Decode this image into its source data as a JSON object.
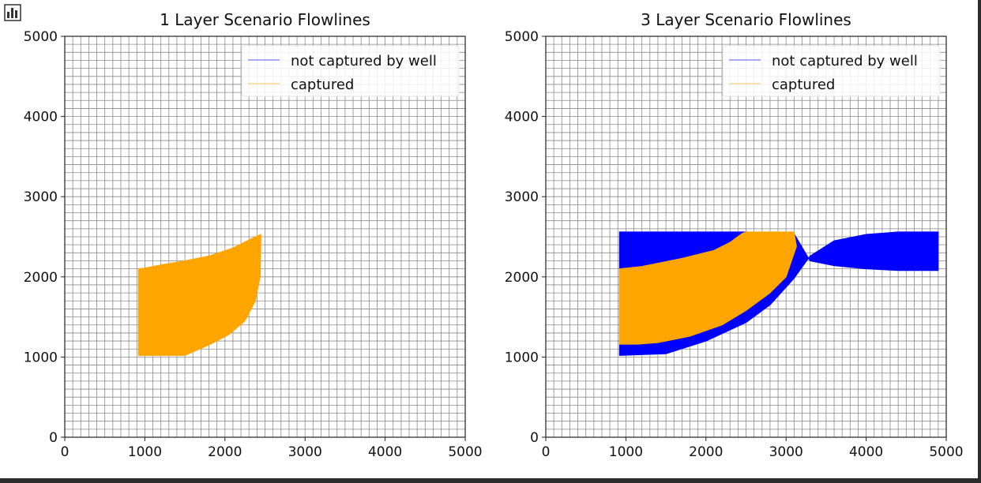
{
  "toolbar": {
    "icon": "bar-chart-icon"
  },
  "chart_data": [
    {
      "type": "line",
      "title": "1 Layer Scenario Flowlines",
      "xlabel": "",
      "ylabel": "",
      "xlim": [
        0,
        5000
      ],
      "ylim": [
        0,
        5000
      ],
      "xticks": [
        "0",
        "1000",
        "2000",
        "3000",
        "4000",
        "5000"
      ],
      "yticks": [
        "0",
        "1000",
        "2000",
        "3000",
        "4000",
        "5000"
      ],
      "grid": true,
      "grid_spacing": 100,
      "legend_position": "top-right",
      "series": [
        {
          "name": "not captured by well",
          "color": "#0000ff",
          "x": [],
          "y": []
        },
        {
          "name": "captured",
          "color": "#ffa500",
          "x": [
            920,
            1000,
            1200,
            1500,
            1800,
            2100,
            2380,
            2450,
            2440,
            2380,
            2250,
            2050,
            1800,
            1500,
            920
          ],
          "y": [
            2100,
            2110,
            2150,
            2200,
            2260,
            2360,
            2500,
            2530,
            2000,
            1700,
            1450,
            1280,
            1150,
            1020,
            1020
          ]
        }
      ]
    },
    {
      "type": "line",
      "title": "3 Layer Scenario Flowlines",
      "xlabel": "",
      "ylabel": "",
      "xlim": [
        0,
        5000
      ],
      "ylim": [
        0,
        5000
      ],
      "xticks": [
        "0",
        "1000",
        "2000",
        "3000",
        "4000",
        "5000"
      ],
      "yticks": [
        "0",
        "1000",
        "2000",
        "3000",
        "4000",
        "5000"
      ],
      "grid": true,
      "grid_spacing": 100,
      "legend_position": "top-right",
      "series": [
        {
          "name": "not captured by well",
          "color": "#0000ff",
          "x": [
            920,
            1500,
            2000,
            2500,
            2800,
            3100,
            3300,
            3600,
            4000,
            4400,
            4900,
            4900,
            4400,
            4000,
            3600,
            3300,
            3100,
            2500,
            920
          ],
          "y": [
            1020,
            1040,
            1200,
            1430,
            1650,
            1980,
            2260,
            2450,
            2530,
            2560,
            2560,
            2080,
            2080,
            2100,
            2140,
            2200,
            2540,
            2560,
            2560
          ]
        },
        {
          "name": "captured",
          "color": "#ffa500",
          "x": [
            920,
            1200,
            1700,
            2100,
            2300,
            2450,
            2500,
            3100,
            3130,
            3000,
            2800,
            2500,
            2200,
            1800,
            1400,
            1150,
            920
          ],
          "y": [
            2100,
            2130,
            2230,
            2330,
            2430,
            2540,
            2560,
            2560,
            2380,
            2000,
            1800,
            1580,
            1400,
            1260,
            1180,
            1160,
            1160
          ]
        }
      ]
    }
  ]
}
